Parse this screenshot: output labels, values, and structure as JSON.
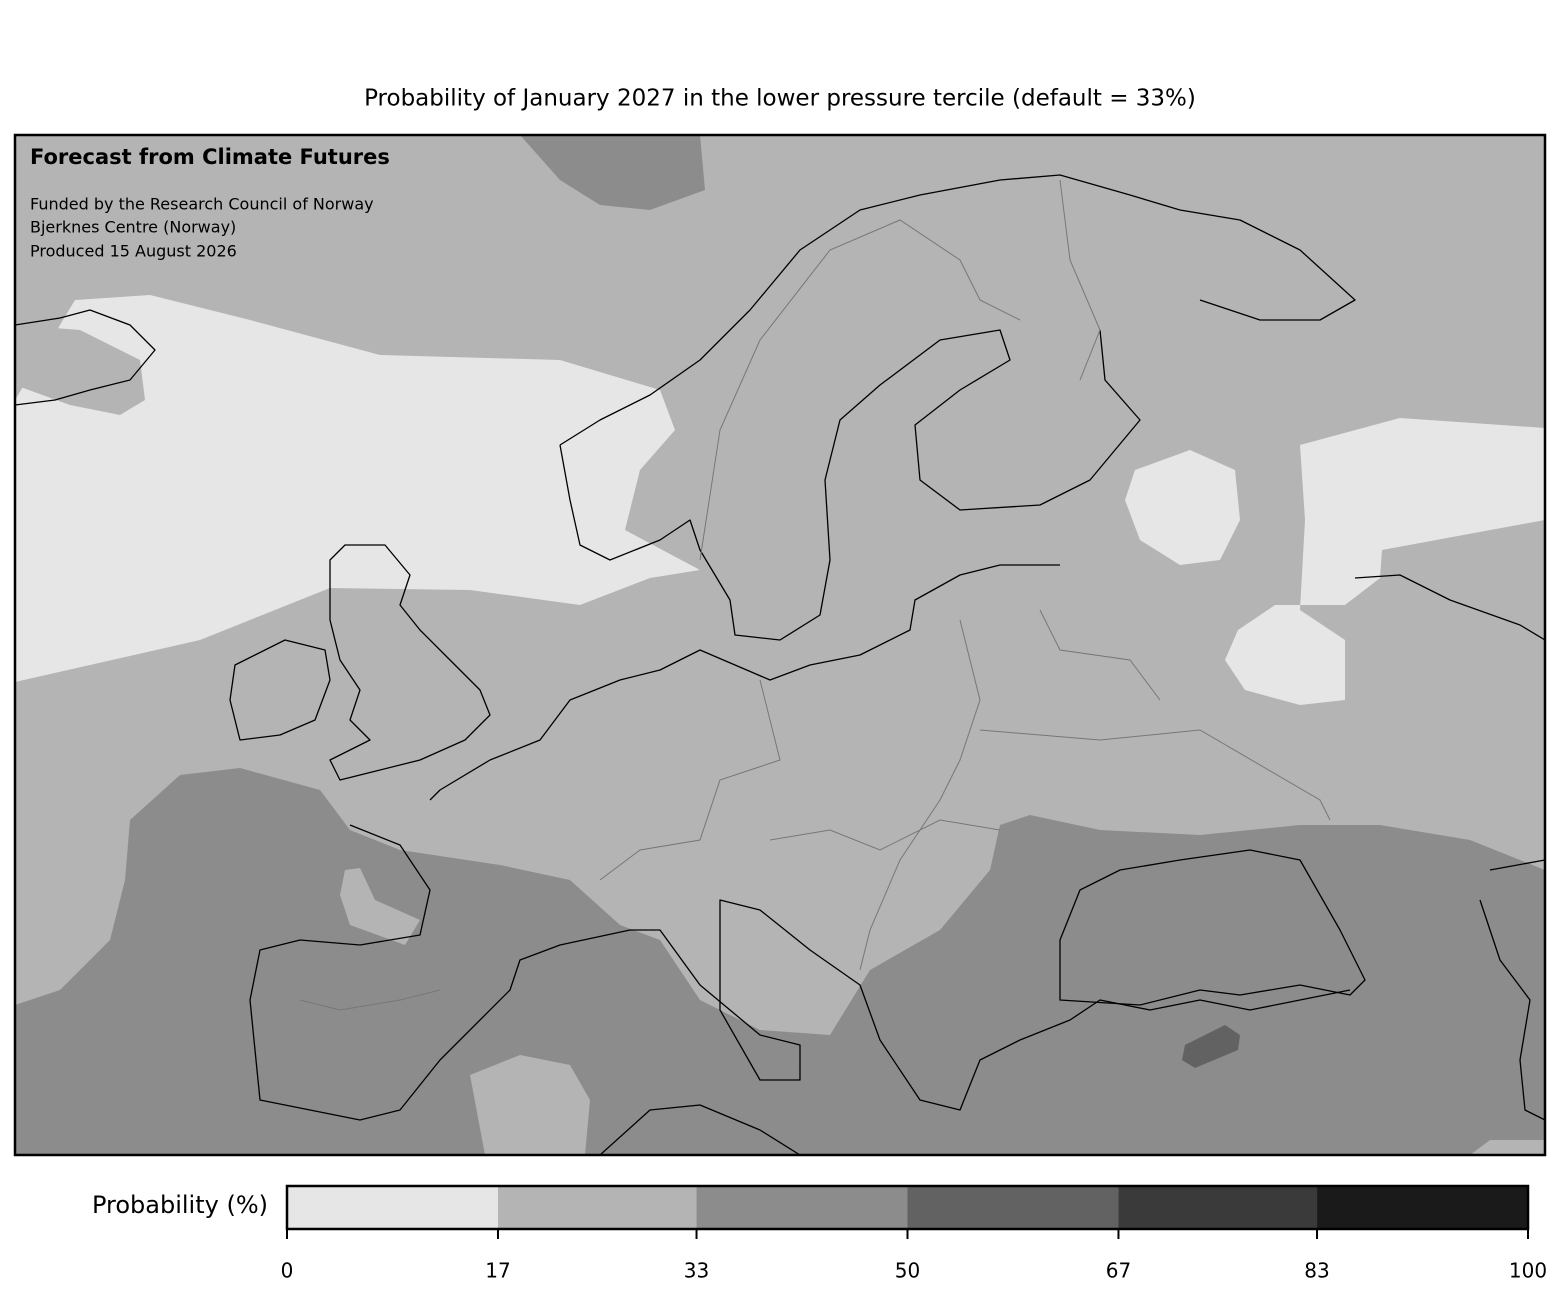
{
  "title": "Probability of January 2027 in the lower pressure tercile (default = 33%)",
  "annotations": {
    "heading": "Forecast from Climate Futures",
    "lines": [
      "Funded by the Research Council of Norway",
      "Bjerknes Centre (Norway)",
      "Produced 15 August 2026"
    ]
  },
  "colorbar": {
    "label": "Probability (%)",
    "lim": [
      0,
      100
    ],
    "ticks": [
      0,
      17,
      33,
      50,
      67,
      83,
      100
    ],
    "colors": [
      "#e6e6e6",
      "#b4b4b4",
      "#8c8c8c",
      "#626262",
      "#3a3a3a",
      "#1a1a1a"
    ]
  }
}
